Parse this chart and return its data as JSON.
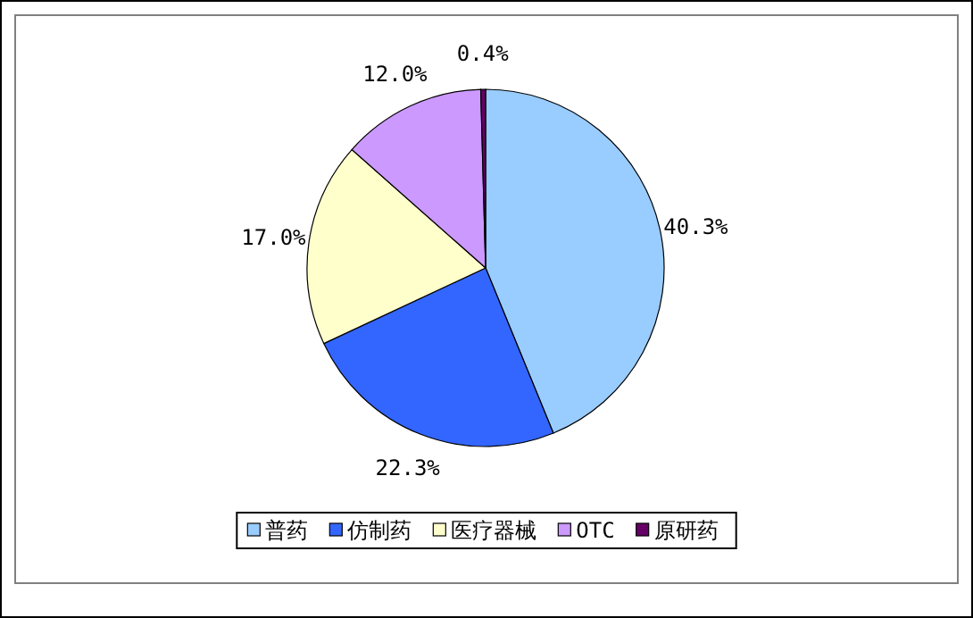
{
  "chart_data": {
    "type": "pie",
    "categories": [
      "普药",
      "仿制药",
      "医疗器械",
      "OTC",
      "原研药"
    ],
    "values": [
      40.3,
      22.3,
      17.0,
      12.0,
      0.4
    ],
    "colors": [
      "#99ccff",
      "#3366ff",
      "#ffffcc",
      "#cc99ff",
      "#660066"
    ],
    "value_labels": [
      "40.3%",
      "22.3%",
      "17.0%",
      "12.0%",
      "0.4%"
    ],
    "legend": "bottom"
  }
}
